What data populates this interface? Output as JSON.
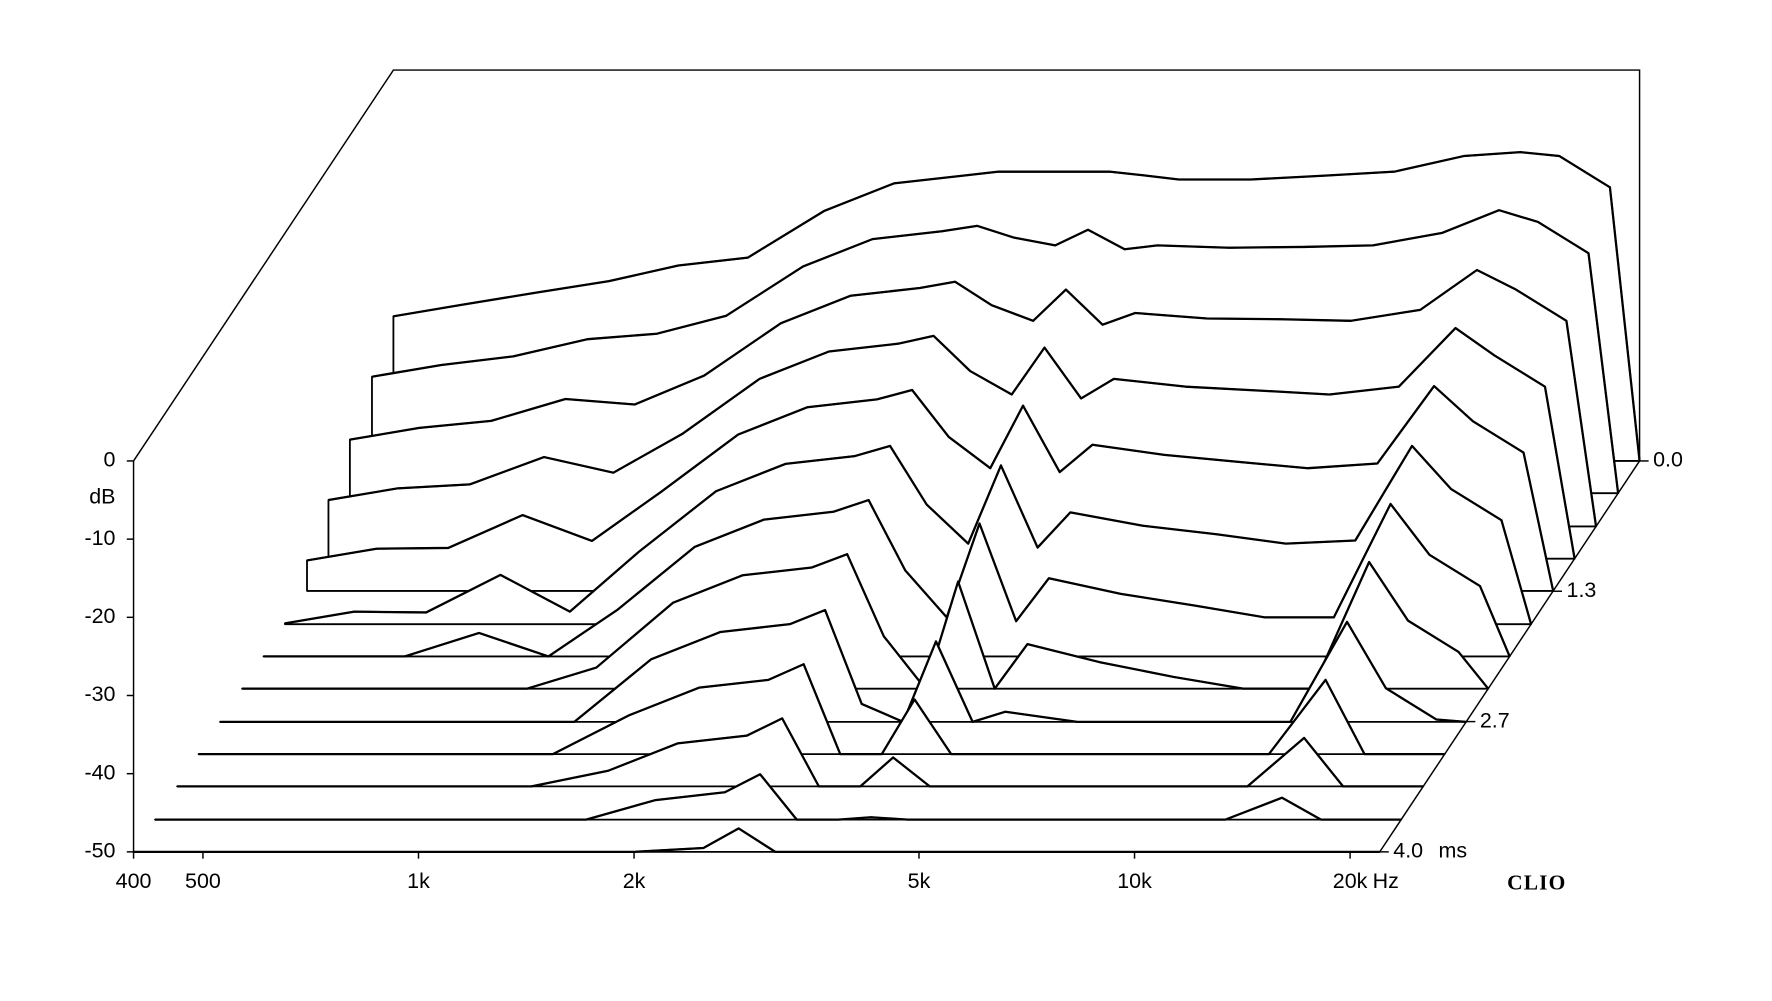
{
  "chart_data": {
    "type": "waterfall",
    "y_label": "dB",
    "x_unit": "Hz",
    "z_unit": "ms",
    "brand": "CLIO",
    "color": "#000000",
    "log_x": true,
    "xlim": [
      400,
      22000
    ],
    "xticks": [
      400,
      500,
      {
        "value": 1000,
        "label": "1k"
      },
      {
        "value": 2000,
        "label": "2k"
      },
      {
        "value": 5000,
        "label": "5k"
      },
      {
        "value": 10000,
        "label": "10k"
      },
      {
        "value": 20000,
        "label": "20k"
      }
    ],
    "ylim": [
      -50,
      0
    ],
    "yticks": [
      0,
      -10,
      -20,
      -30,
      -40,
      -50
    ],
    "zlim": [
      0,
      4
    ],
    "zticks": [
      {
        "value": 0,
        "label": "0.0"
      },
      {
        "value": 1.333,
        "label": "1.3"
      },
      {
        "value": 2.667,
        "label": "2.7"
      },
      {
        "value": 4,
        "label": "4.0"
      }
    ],
    "frequencies": [
      400,
      500,
      630,
      800,
      1000,
      1250,
      1600,
      2000,
      2500,
      2800,
      3150,
      3600,
      4000,
      4500,
      5000,
      6300,
      8000,
      10000,
      12500,
      15000,
      17000,
      20000,
      22000
    ],
    "slices": [
      {
        "t": 0,
        "values": [
          -31.5,
          -30,
          -28.5,
          -27,
          -25,
          -24,
          -18,
          -14.5,
          -13.5,
          -13,
          -13,
          -13,
          -13,
          -13.5,
          -14,
          -14,
          -13.5,
          -13,
          -11,
          -10.5,
          -11,
          -15,
          -50
        ]
      },
      {
        "t": 0.33,
        "values": [
          -35.1,
          -33.6,
          -32.5,
          -30.3,
          -29.6,
          -27.3,
          -21,
          -17.5,
          -16.5,
          -15.8,
          -17.3,
          -18.3,
          -16.3,
          -18.8,
          -18.3,
          -18.6,
          -18.5,
          -18.3,
          -16.7,
          -13.8,
          -15.3,
          -19.3,
          -50
        ]
      },
      {
        "t": 0.67,
        "values": [
          -38.9,
          -37.4,
          -36.5,
          -33.7,
          -34.4,
          -30.7,
          -24,
          -20.5,
          -19.5,
          -18.7,
          -21.7,
          -23.7,
          -19.7,
          -24.2,
          -22.7,
          -23.4,
          -23.5,
          -23.7,
          -22.3,
          -17.2,
          -19.7,
          -23.7,
          -50
        ]
      },
      {
        "t": 1.0,
        "values": [
          -42.5,
          -41,
          -40.5,
          -37,
          -39,
          -34,
          -27,
          -23.5,
          -22.5,
          -21.5,
          -26,
          -29,
          -23,
          -29.5,
          -27,
          -28,
          -28.5,
          -29,
          -28,
          -20.5,
          -24,
          -28,
          -50
        ]
      },
      {
        "t": 1.33,
        "values": [
          -46.1,
          -44.6,
          -44.5,
          -40.3,
          -43.6,
          -37.3,
          -30,
          -26.5,
          -25.5,
          -24.3,
          -30.3,
          -34.3,
          -26.3,
          -34.8,
          -31.3,
          -32.6,
          -33.5,
          -34.3,
          -33.7,
          -23.8,
          -28.3,
          -32.3,
          -50
        ]
      },
      {
        "t": 1.67,
        "values": [
          -49.9,
          -48.4,
          -48.5,
          -43.7,
          -48.4,
          -40.7,
          -33,
          -29.5,
          -28.5,
          -27.2,
          -34.7,
          -39.7,
          -29.7,
          -40.2,
          -35.7,
          -37.4,
          -38.5,
          -39.7,
          -39.3,
          -27.2,
          -32.7,
          -36.7,
          -50
        ]
      },
      {
        "t": 2.0,
        "values": [
          -50,
          -50,
          -50,
          -47,
          -50,
          -44,
          -36,
          -32.5,
          -31.5,
          -30,
          -39,
          -45,
          -33,
          -45.5,
          -40,
          -42,
          -43.5,
          -45,
          -45,
          -30.5,
          -37,
          -41,
          -50
        ]
      },
      {
        "t": 2.33,
        "values": [
          -50,
          -50,
          -50,
          -50,
          -50,
          -47.3,
          -39,
          -35.5,
          -34.5,
          -32.8,
          -43.3,
          -50,
          -36.3,
          -50,
          -44.3,
          -46.6,
          -48.5,
          -50,
          -50,
          -33.8,
          -41.3,
          -45.3,
          -50
        ]
      },
      {
        "t": 2.67,
        "values": [
          -50,
          -50,
          -50,
          -50,
          -50,
          -50,
          -42,
          -38.5,
          -37.5,
          -35.7,
          -47.7,
          -50,
          -39.7,
          -50,
          -48.7,
          -50,
          -50,
          -50,
          -50,
          -37.2,
          -45.7,
          -49.7,
          -50
        ]
      },
      {
        "t": 3.0,
        "values": [
          -50,
          -50,
          -50,
          -50,
          -50,
          -50,
          -45,
          -41.5,
          -40.5,
          -38.5,
          -50,
          -50,
          -43,
          -50,
          -50,
          -50,
          -50,
          -50,
          -50,
          -40.5,
          -50,
          -50,
          -50
        ]
      },
      {
        "t": 3.33,
        "values": [
          -50,
          -50,
          -50,
          -50,
          -50,
          -50,
          -48,
          -44.5,
          -43.5,
          -41.3,
          -50,
          -50,
          -46.3,
          -50,
          -50,
          -50,
          -50,
          -50,
          -50,
          -43.8,
          -50,
          -50,
          -50
        ]
      },
      {
        "t": 3.67,
        "values": [
          -50,
          -50,
          -50,
          -50,
          -50,
          -50,
          -50,
          -47.5,
          -46.5,
          -44.2,
          -50,
          -50,
          -49.7,
          -50,
          -50,
          -50,
          -50,
          -50,
          -50,
          -47.2,
          -50,
          -50,
          -50
        ]
      },
      {
        "t": 4.0,
        "values": [
          -50,
          -50,
          -50,
          -50,
          -50,
          -50,
          -50,
          -50,
          -49.5,
          -47,
          -50,
          -50,
          -50,
          -50,
          -50,
          -50,
          -50,
          -50,
          -50,
          -50,
          -50,
          -50,
          -50
        ]
      }
    ]
  }
}
